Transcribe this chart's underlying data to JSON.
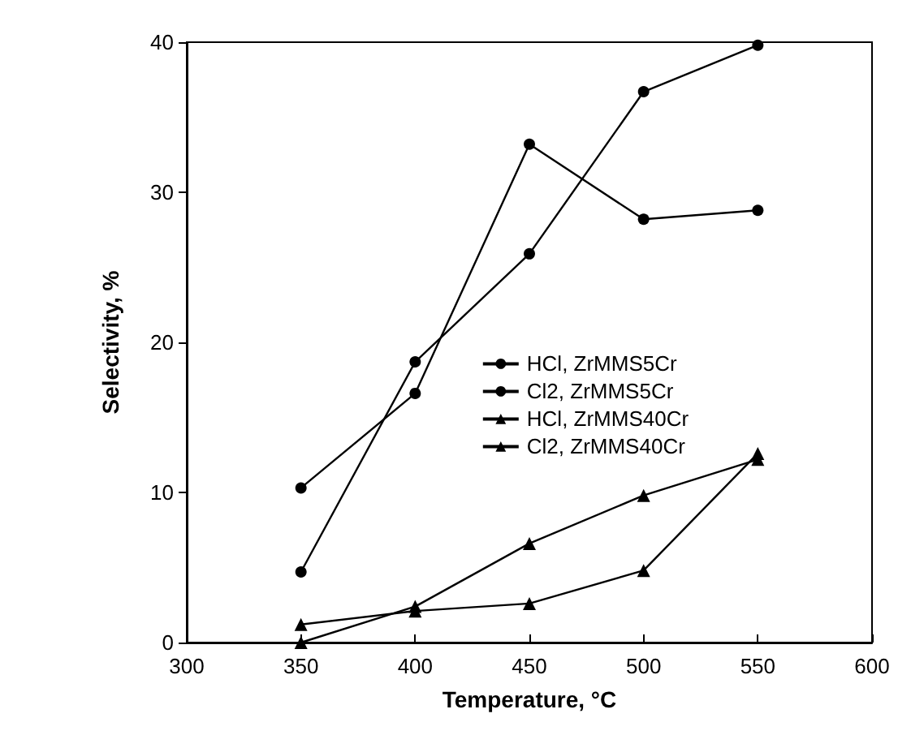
{
  "chart_data": {
    "type": "line",
    "xlabel": "Temperature, °C",
    "ylabel": "Selectivity, %",
    "x": [
      350,
      400,
      450,
      500,
      550
    ],
    "series": [
      {
        "name": "HCl, ZrMMS5Cr",
        "color": "#000000",
        "marker": "circle",
        "values": [
          10.3,
          16.6,
          33.2,
          28.2,
          28.8
        ]
      },
      {
        "name": "Cl2, ZrMMS5Cr",
        "color": "#000000",
        "marker": "circle",
        "values": [
          4.7,
          18.7,
          25.9,
          36.7,
          39.8
        ]
      },
      {
        "name": "HCl, ZrMMS40Cr",
        "color": "#000000",
        "marker": "triangle",
        "values": [
          1.2,
          2.1,
          2.6,
          4.8,
          12.6
        ]
      },
      {
        "name": "Cl2, ZrMMS40Cr",
        "color": "#000000",
        "marker": "triangle",
        "values": [
          0,
          2.4,
          6.6,
          9.8,
          12.2
        ]
      }
    ],
    "xlim": [
      300,
      600
    ],
    "xticks": [
      300,
      350,
      400,
      450,
      500,
      550,
      600
    ],
    "ylim": [
      0,
      40
    ],
    "yticks": [
      0,
      10,
      20,
      30,
      40
    ],
    "grid": false,
    "legend": "right",
    "line_style": "solid"
  }
}
